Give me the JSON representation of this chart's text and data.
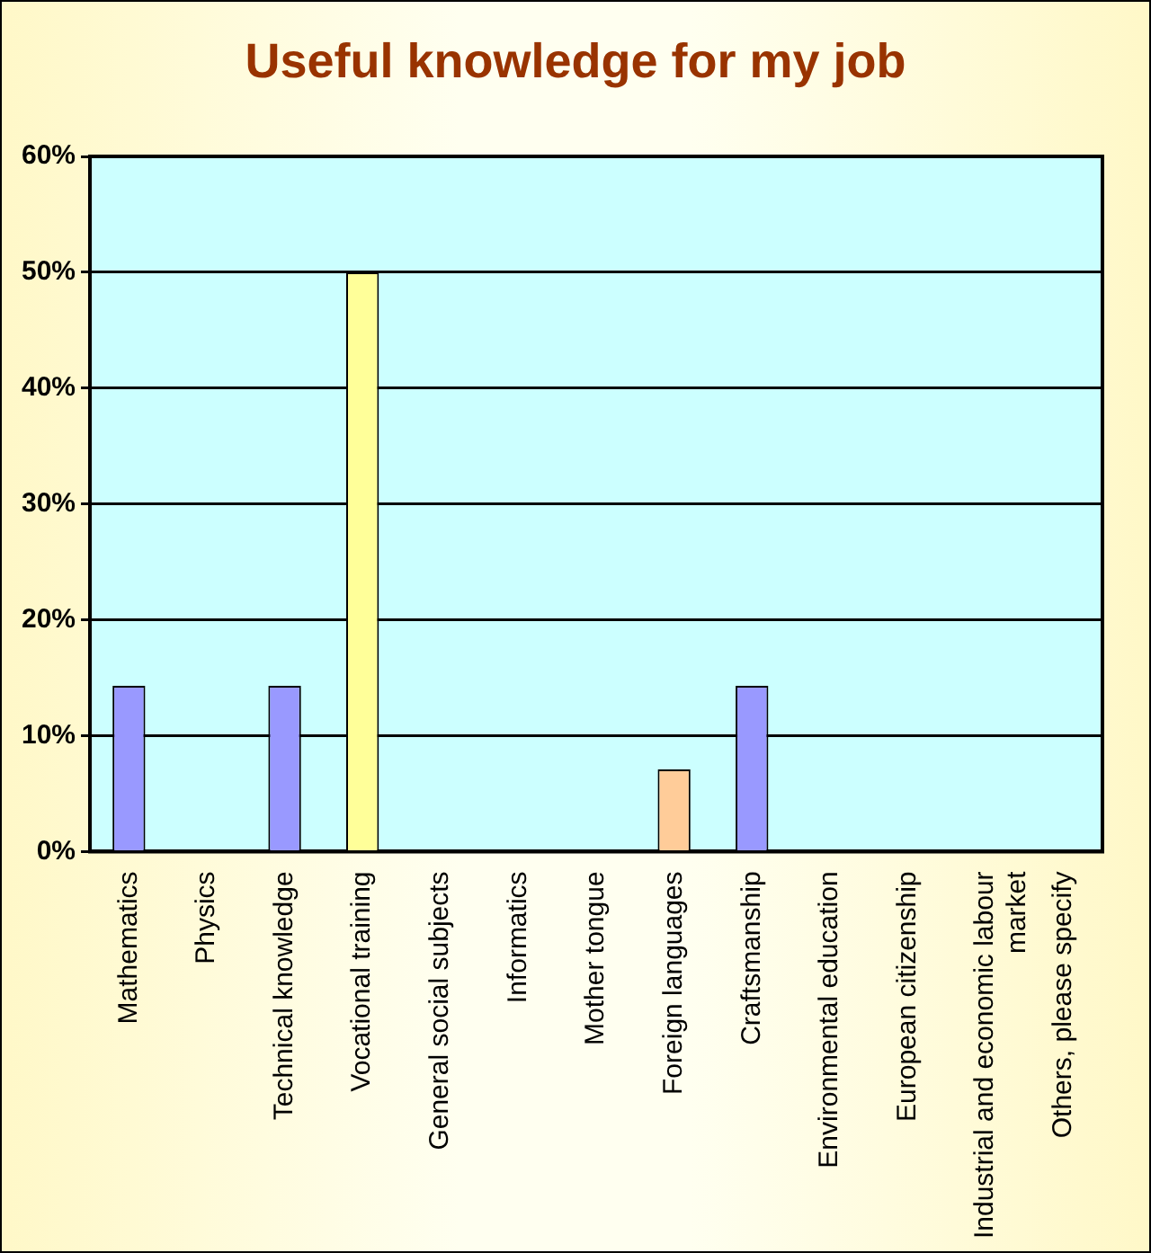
{
  "chart_data": {
    "type": "bar",
    "title": "Useful knowledge for my job",
    "categories": [
      "Mathematics",
      "Physics",
      "Technical knowledge",
      "Vocational training",
      "General social subjects",
      "Informatics",
      "Mother tongue",
      "Foreign languages",
      "Craftsmanship",
      "Environmental education",
      "European citizenship",
      "Industrial and economic labour market",
      "Others, please specify"
    ],
    "values": [
      14.3,
      0,
      14.3,
      50,
      0,
      0,
      0,
      7.1,
      14.3,
      0,
      0,
      0,
      0
    ],
    "colors": [
      "#9999ff",
      "#9999ff",
      "#9999ff",
      "#ffff99",
      "#9999ff",
      "#9999ff",
      "#9999ff",
      "#ffcc99",
      "#9999ff",
      "#9999ff",
      "#9999ff",
      "#9999ff",
      "#9999ff"
    ],
    "ylim": [
      0,
      60
    ],
    "yticks": [
      {
        "value": 0,
        "label": "0%"
      },
      {
        "value": 10,
        "label": "10%"
      },
      {
        "value": 20,
        "label": "20%"
      },
      {
        "value": 30,
        "label": "30%"
      },
      {
        "value": 40,
        "label": "40%"
      },
      {
        "value": 50,
        "label": "50%"
      },
      {
        "value": 60,
        "label": "60%"
      }
    ],
    "grid": "y"
  }
}
